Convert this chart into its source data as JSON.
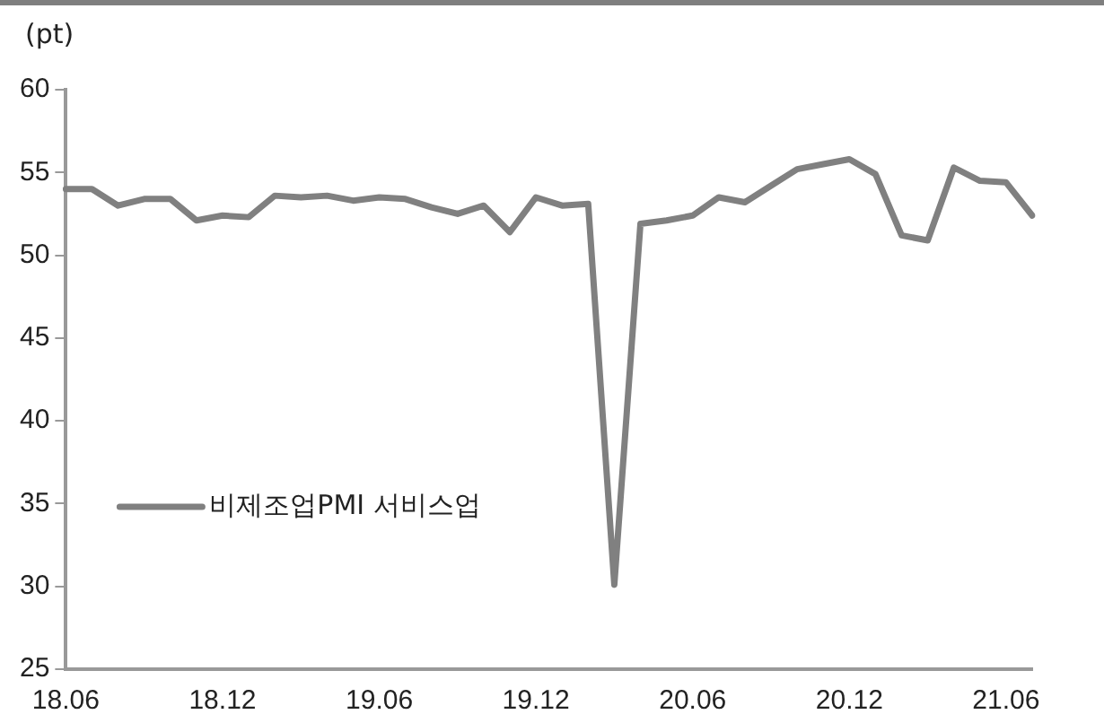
{
  "chart_data": {
    "type": "line",
    "ylabel": "(pt)",
    "categories": [
      "18.06",
      null,
      null,
      null,
      null,
      null,
      "18.12",
      null,
      null,
      null,
      null,
      null,
      "19.06",
      null,
      null,
      null,
      null,
      null,
      "19.12",
      null,
      null,
      null,
      null,
      null,
      "20.06",
      null,
      null,
      null,
      null,
      null,
      "20.12",
      null,
      null,
      null,
      null,
      null,
      "21.06",
      null
    ],
    "series": [
      {
        "name": "비제조업PMI 서비스업",
        "color": "#808080",
        "values": [
          54.0,
          54.0,
          53.0,
          53.4,
          53.4,
          52.1,
          52.4,
          52.3,
          53.6,
          53.5,
          53.6,
          53.3,
          53.5,
          53.4,
          52.9,
          52.5,
          53.0,
          51.4,
          53.5,
          53.0,
          53.1,
          30.1,
          51.9,
          52.1,
          52.4,
          53.5,
          53.2,
          54.2,
          55.2,
          55.5,
          55.8,
          54.9,
          51.2,
          50.9,
          55.3,
          54.5,
          54.4,
          52.4
        ]
      }
    ],
    "ylim": [
      25,
      60
    ],
    "yticks": [
      25,
      30,
      35,
      40,
      45,
      50,
      55,
      60
    ],
    "grid": false,
    "legend": "left",
    "marker": "none",
    "line_style": "solid"
  }
}
